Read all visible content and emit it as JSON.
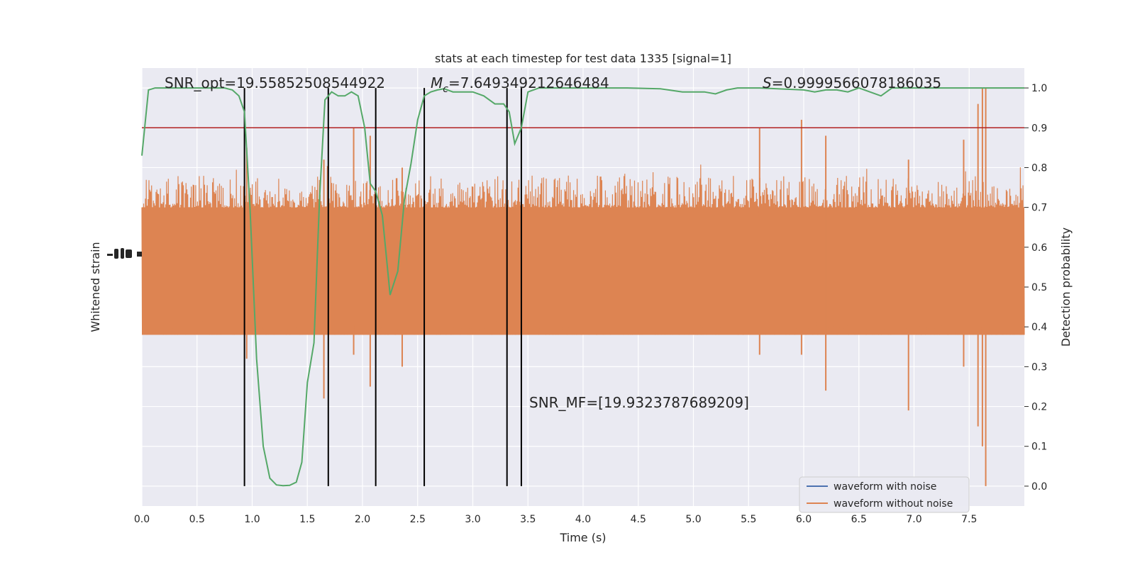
{
  "chart_data": {
    "type": "line",
    "title": "stats at each timestep for test data 1335 [signal=1]",
    "xlabel": "Time (s)",
    "ylabel_left": "Whitened strain",
    "ylabel_right": "Detection probability",
    "xlim": [
      0,
      8
    ],
    "ylim_right": [
      -0.05,
      1.05
    ],
    "x_ticks": [
      "0.0",
      "0.5",
      "1.0",
      "1.5",
      "2.0",
      "2.5",
      "3.0",
      "3.5",
      "4.0",
      "4.5",
      "5.0",
      "5.5",
      "6.0",
      "6.5",
      "7.0",
      "7.5"
    ],
    "y_ticks_right": [
      "0.0",
      "0.1",
      "0.2",
      "0.3",
      "0.4",
      "0.5",
      "0.6",
      "0.7",
      "0.8",
      "0.9",
      "1.0"
    ],
    "grid": true,
    "threshold": 0.9,
    "annotations": {
      "snr_opt": "SNR_opt=19.55852508544922",
      "mc_symbol": "M",
      "mc_sub": "c",
      "mc_value": "=7.649349212646484",
      "s_symbol": "S",
      "s_value": "=0.9999566078186035",
      "snr_mf": "SNR_MF=[19.9323787689209]"
    },
    "vertical_lines": [
      0.93,
      1.69,
      2.12,
      2.56,
      3.31,
      3.44
    ],
    "legend": {
      "position": "lower-right",
      "entries": [
        {
          "label": "waveform with noise",
          "color": "#4c72b0"
        },
        {
          "label": "waveform without noise",
          "color": "#dd8452"
        }
      ]
    },
    "series": [
      {
        "name": "",
        "kind": "detection-probability",
        "color": "#55a868",
        "x": [
          0.0,
          0.06,
          0.12,
          0.2,
          0.35,
          0.5,
          0.65,
          0.75,
          0.82,
          0.88,
          0.93,
          0.98,
          1.04,
          1.1,
          1.16,
          1.22,
          1.28,
          1.34,
          1.4,
          1.45,
          1.5,
          1.56,
          1.61,
          1.66,
          1.72,
          1.78,
          1.84,
          1.9,
          1.96,
          2.02,
          2.07,
          2.12,
          2.18,
          2.25,
          2.32,
          2.38,
          2.44,
          2.5,
          2.56,
          2.62,
          2.68,
          2.74,
          2.82,
          3.0,
          3.1,
          3.2,
          3.28,
          3.33,
          3.38,
          3.44,
          3.5,
          3.6,
          3.8,
          4.0,
          4.4,
          4.7,
          4.9,
          5.0,
          5.1,
          5.2,
          5.3,
          5.4,
          5.5,
          5.6,
          6.0,
          6.1,
          6.2,
          6.3,
          6.4,
          6.5,
          6.6,
          6.7,
          6.8,
          7.0,
          7.5,
          8.0
        ],
        "y": [
          0.83,
          0.995,
          1.0,
          1.0,
          1.0,
          1.0,
          1.0,
          1.0,
          0.995,
          0.98,
          0.94,
          0.7,
          0.32,
          0.1,
          0.02,
          0.003,
          0.001,
          0.002,
          0.01,
          0.06,
          0.26,
          0.36,
          0.72,
          0.97,
          0.99,
          0.98,
          0.98,
          0.99,
          0.98,
          0.9,
          0.76,
          0.74,
          0.68,
          0.48,
          0.54,
          0.72,
          0.81,
          0.92,
          0.98,
          0.99,
          0.995,
          0.998,
          0.99,
          0.99,
          0.98,
          0.96,
          0.96,
          0.94,
          0.86,
          0.9,
          0.99,
          1.0,
          1.0,
          1.0,
          1.0,
          0.998,
          0.99,
          0.99,
          0.99,
          0.985,
          0.995,
          1.0,
          1.0,
          1.0,
          0.995,
          0.99,
          0.995,
          0.995,
          0.99,
          1.0,
          0.99,
          0.98,
          1.0,
          1.0,
          1.0,
          1.0
        ]
      },
      {
        "name": "",
        "kind": "whitened-strain-noise",
        "color": "#dd8452",
        "x_range": [
          0,
          8
        ],
        "sample_count": 2000,
        "core_band": [
          0.38,
          0.7
        ],
        "typical_extent": [
          0.4,
          0.78
        ],
        "spikes": [
          {
            "x": 0.95,
            "high": 0.85,
            "low": 0.32
          },
          {
            "x": 1.65,
            "high": 0.82,
            "low": 0.22
          },
          {
            "x": 1.92,
            "high": 0.9,
            "low": 0.33
          },
          {
            "x": 2.07,
            "high": 0.88,
            "low": 0.25
          },
          {
            "x": 2.36,
            "high": 0.8,
            "low": 0.3
          },
          {
            "x": 5.6,
            "high": 0.9,
            "low": 0.33
          },
          {
            "x": 5.98,
            "high": 0.92,
            "low": 0.33
          },
          {
            "x": 6.2,
            "high": 0.88,
            "low": 0.24
          },
          {
            "x": 6.95,
            "high": 0.82,
            "low": 0.19
          },
          {
            "x": 7.45,
            "high": 0.87,
            "low": 0.3
          },
          {
            "x": 7.58,
            "high": 0.96,
            "low": 0.15
          },
          {
            "x": 7.62,
            "high": 1.0,
            "low": 0.1
          },
          {
            "x": 7.65,
            "high": 1.0,
            "low": 0.0
          }
        ]
      }
    ]
  }
}
